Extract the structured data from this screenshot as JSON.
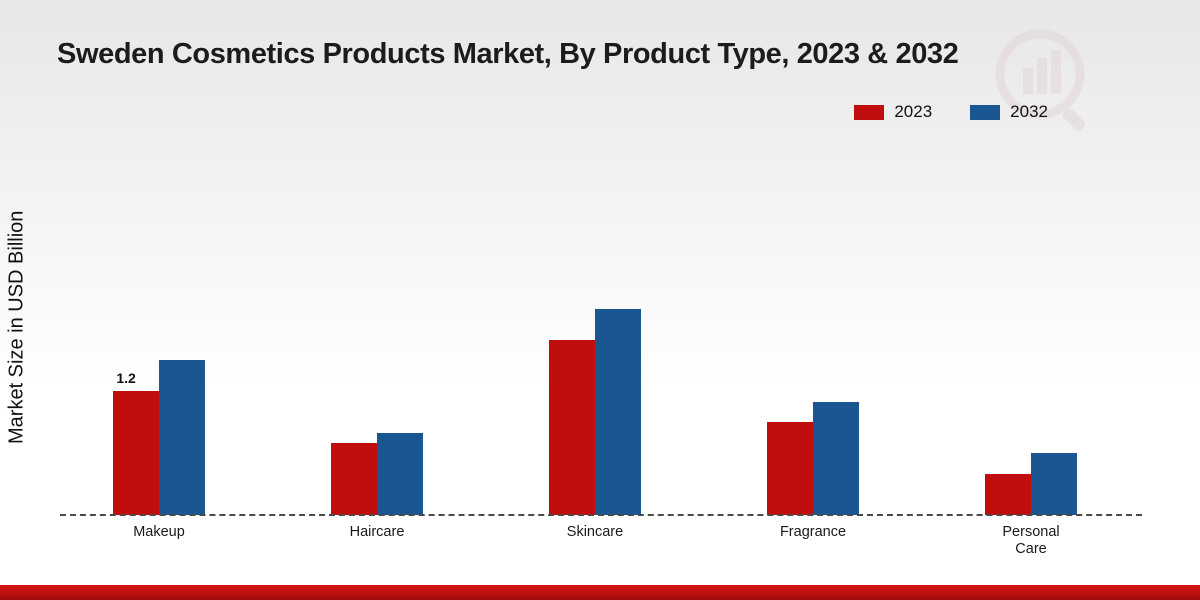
{
  "title": "Sweden Cosmetics Products Market, By Product Type, 2023 & 2032",
  "ylabel": "Market Size in USD Billion",
  "legend": [
    {
      "label": "2023",
      "color": "#c00d0d"
    },
    {
      "label": "2032",
      "color": "#1a5692"
    }
  ],
  "chart_data": {
    "type": "bar",
    "title": "Sweden Cosmetics Products Market, By Product Type, 2023 & 2032",
    "xlabel": "",
    "ylabel": "Market Size in USD Billion",
    "categories": [
      "Makeup",
      "Haircare",
      "Skincare",
      "Fragrance",
      "Personal Care"
    ],
    "series": [
      {
        "name": "2023",
        "color": "#c00d0d",
        "values": [
          1.2,
          0.7,
          1.7,
          0.9,
          0.4
        ]
      },
      {
        "name": "2032",
        "color": "#1a5692",
        "values": [
          1.5,
          0.8,
          2.0,
          1.1,
          0.6
        ]
      }
    ],
    "ylim": [
      0,
      2.5
    ],
    "grid": false,
    "legend_position": "top-right",
    "annotations": [
      {
        "category_index": 0,
        "series_index": 0,
        "text": "1.2"
      }
    ]
  },
  "colors": {
    "bar_2023": "#c00d0d",
    "bar_2032": "#1a5692",
    "footer_band": "#c11010",
    "baseline": "#4a4a4a"
  }
}
